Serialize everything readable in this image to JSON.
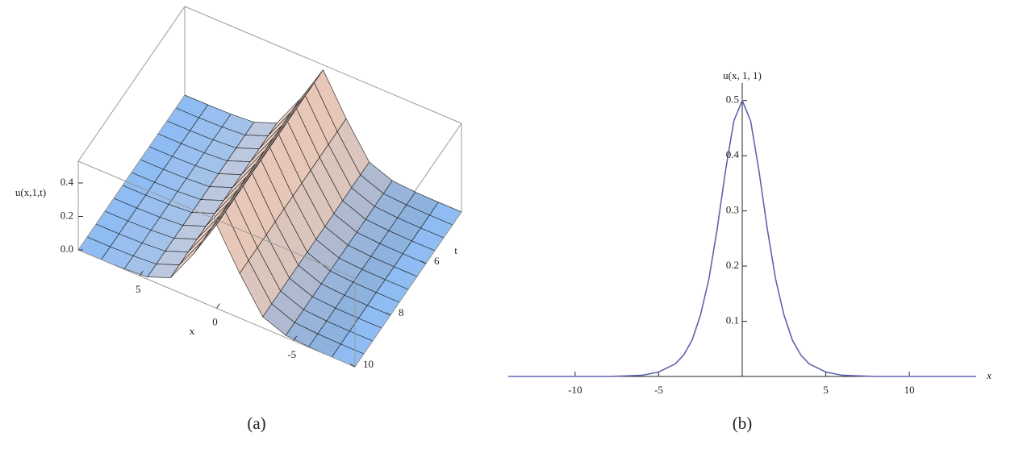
{
  "chart_data": [
    {
      "type": "surface",
      "caption": "(a)",
      "x_label": "x",
      "t_label": "t",
      "z_label": "u(x,1,t)",
      "x": [
        -9,
        -7.5,
        -6,
        -4.5,
        -3,
        -1.5,
        0,
        1.5,
        3,
        4.5,
        6,
        7.5,
        9
      ],
      "values": [
        0,
        0,
        0.003,
        0.013,
        0.066,
        0.267,
        0.5,
        0.267,
        0.066,
        0.013,
        0.003,
        0,
        0
      ],
      "t": [
        4,
        4.5,
        5,
        5.5,
        6,
        6.5,
        7,
        7.5,
        8,
        8.5,
        9,
        9.5,
        10
      ],
      "xlim": [
        -9,
        9
      ],
      "xticks": [
        -5,
        0,
        5
      ],
      "tlim": [
        4,
        10
      ],
      "tticks": [
        6,
        8,
        10
      ],
      "zlim": [
        0,
        0.53
      ],
      "zticks": [
        {
          "value": 0,
          "label": "0.0"
        },
        0.2,
        0.4
      ],
      "color_low": "#8fbdf3",
      "color_high": "#f7d6c6"
    },
    {
      "type": "line",
      "caption": "(b)",
      "x_label": "x",
      "y_label": "u(x, 1, 1)",
      "x": [
        -14,
        -10,
        -8,
        -6,
        -5,
        -4,
        -3.5,
        -3,
        -2.5,
        -2,
        -1.5,
        -1,
        -0.5,
        0,
        0.5,
        1,
        1.5,
        2,
        2.5,
        3,
        3.5,
        4,
        5,
        6,
        8,
        10,
        14
      ],
      "values": [
        0,
        0,
        0,
        0.002,
        0.008,
        0.023,
        0.039,
        0.066,
        0.111,
        0.176,
        0.267,
        0.373,
        0.463,
        0.5,
        0.463,
        0.373,
        0.267,
        0.176,
        0.111,
        0.066,
        0.039,
        0.023,
        0.008,
        0.002,
        0,
        0,
        0
      ],
      "color": "#6064ad",
      "xlim": [
        -14,
        14
      ],
      "xticks": [
        -10,
        -5,
        5,
        10
      ],
      "ylim": [
        0,
        0.52
      ],
      "yticks": [
        0.1,
        0.2,
        0.3,
        0.4,
        0.5
      ]
    }
  ]
}
